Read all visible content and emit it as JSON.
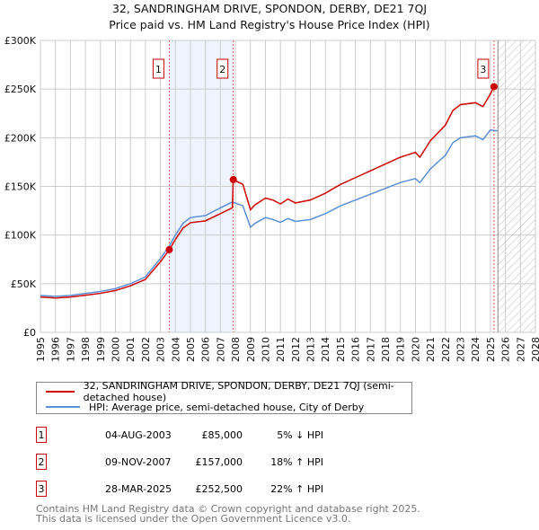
{
  "title_line1": "32, SANDRINGHAM DRIVE, SPONDON, DERBY, DE21 7QJ",
  "title_line2": "Price paid vs. HM Land Registry's House Price Index (HPI)",
  "colors": {
    "property": "#cc0000",
    "hpi": "#5b8fd6",
    "shade": "#eef3fd"
  },
  "chart_data": {
    "type": "line",
    "title": "Price paid vs. HM Land Registry's House Price Index (HPI)",
    "xlim": [
      1995,
      2028
    ],
    "ylim": [
      0,
      300000
    ],
    "y_ticks": [
      {
        "v": 0,
        "label": "£0"
      },
      {
        "v": 50000,
        "label": "£50K"
      },
      {
        "v": 100000,
        "label": "£100K"
      },
      {
        "v": 150000,
        "label": "£150K"
      },
      {
        "v": 200000,
        "label": "£200K"
      },
      {
        "v": 250000,
        "label": "£250K"
      },
      {
        "v": 300000,
        "label": "£300K"
      }
    ],
    "x_ticks": [
      "1995",
      "1996",
      "1997",
      "1998",
      "1999",
      "2000",
      "2001",
      "2002",
      "2003",
      "2004",
      "2005",
      "2006",
      "2007",
      "2008",
      "2009",
      "2010",
      "2011",
      "2012",
      "2013",
      "2014",
      "2015",
      "2016",
      "2017",
      "2018",
      "2019",
      "2020",
      "2021",
      "2022",
      "2023",
      "2024",
      "2025",
      "2026",
      "2027",
      "2028"
    ],
    "grid": true,
    "shaded_period": [
      2003.6,
      2007.85
    ],
    "forecast_hatch_from": 2025.5,
    "series": [
      {
        "name": "32, SANDRINGHAM DRIVE, SPONDON, DERBY, DE21 7QJ (semi-detached house)",
        "color": "#cc0000",
        "points": [
          [
            1995,
            36300
          ],
          [
            1996,
            35300
          ],
          [
            1997,
            36300
          ],
          [
            1998,
            38200
          ],
          [
            1999,
            40100
          ],
          [
            2000,
            43000
          ],
          [
            2001,
            47800
          ],
          [
            2002,
            54400
          ],
          [
            2003,
            72600
          ],
          [
            2003.6,
            85000
          ],
          [
            2004,
            95500
          ],
          [
            2004.5,
            107000
          ],
          [
            2005,
            112700
          ],
          [
            2006,
            114600
          ],
          [
            2007,
            122000
          ],
          [
            2007.8,
            128000
          ],
          [
            2007.85,
            157000
          ],
          [
            2008.5,
            152000
          ],
          [
            2009,
            126000
          ],
          [
            2009.3,
            131000
          ],
          [
            2010,
            138000
          ],
          [
            2010.5,
            136000
          ],
          [
            2011,
            132000
          ],
          [
            2011.5,
            137000
          ],
          [
            2012,
            133000
          ],
          [
            2013,
            136000
          ],
          [
            2014,
            143000
          ],
          [
            2015,
            152000
          ],
          [
            2016,
            159000
          ],
          [
            2017,
            166000
          ],
          [
            2018,
            173000
          ],
          [
            2019,
            180000
          ],
          [
            2020,
            185000
          ],
          [
            2020.3,
            180000
          ],
          [
            2021,
            197000
          ],
          [
            2022,
            213000
          ],
          [
            2022.5,
            228000
          ],
          [
            2023,
            234000
          ],
          [
            2024,
            236000
          ],
          [
            2024.5,
            232000
          ],
          [
            2025,
            245000
          ],
          [
            2025.24,
            252500
          ]
        ]
      },
      {
        "name": "HPI: Average price, semi-detached house, City of Derby",
        "color": "#5b8fd6",
        "points": [
          [
            1995,
            38000
          ],
          [
            1996,
            37000
          ],
          [
            1997,
            38000
          ],
          [
            1998,
            40000
          ],
          [
            1999,
            42000
          ],
          [
            2000,
            45000
          ],
          [
            2001,
            50000
          ],
          [
            2002,
            57000
          ],
          [
            2003,
            76000
          ],
          [
            2003.6,
            89000
          ],
          [
            2004,
            100000
          ],
          [
            2004.5,
            112000
          ],
          [
            2005,
            118000
          ],
          [
            2006,
            120000
          ],
          [
            2007,
            128000
          ],
          [
            2007.8,
            134000
          ],
          [
            2008.5,
            130000
          ],
          [
            2009,
            108000
          ],
          [
            2009.3,
            112000
          ],
          [
            2010,
            118000
          ],
          [
            2010.5,
            116000
          ],
          [
            2011,
            113000
          ],
          [
            2011.5,
            117000
          ],
          [
            2012,
            114000
          ],
          [
            2013,
            116000
          ],
          [
            2014,
            122000
          ],
          [
            2015,
            130000
          ],
          [
            2016,
            136000
          ],
          [
            2017,
            142000
          ],
          [
            2018,
            148000
          ],
          [
            2019,
            154000
          ],
          [
            2020,
            158000
          ],
          [
            2020.3,
            154000
          ],
          [
            2021,
            168000
          ],
          [
            2022,
            182000
          ],
          [
            2022.5,
            195000
          ],
          [
            2023,
            200000
          ],
          [
            2024,
            202000
          ],
          [
            2024.5,
            198000
          ],
          [
            2025,
            208000
          ],
          [
            2025.5,
            207000
          ]
        ]
      }
    ],
    "sales": [
      {
        "label": "1",
        "x": 2003.59,
        "y": 85000
      },
      {
        "label": "2",
        "x": 2007.86,
        "y": 157000
      },
      {
        "label": "3",
        "x": 2025.24,
        "y": 252500
      }
    ]
  },
  "legend": {
    "property": "32, SANDRINGHAM DRIVE, SPONDON, DERBY, DE21 7QJ (semi-detached house)",
    "hpi": "HPI: Average price, semi-detached house, City of Derby"
  },
  "transactions": [
    {
      "num": "1",
      "date": "04-AUG-2003",
      "price": "£85,000",
      "hpi": "5% ↓ HPI"
    },
    {
      "num": "2",
      "date": "09-NOV-2007",
      "price": "£157,000",
      "hpi": "18% ↑ HPI"
    },
    {
      "num": "3",
      "date": "28-MAR-2025",
      "price": "£252,500",
      "hpi": "22% ↑ HPI"
    }
  ],
  "footer": {
    "line1": "Contains HM Land Registry data © Crown copyright and database right 2025.",
    "line2": "This data is licensed under the Open Government Licence v3.0."
  }
}
